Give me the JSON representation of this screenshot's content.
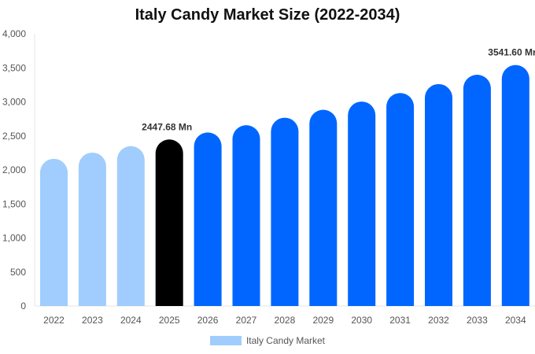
{
  "chart_data": {
    "type": "bar",
    "title": "Italy Candy Market Size (2022-2034)",
    "categories": [
      "2022",
      "2023",
      "2024",
      "2025",
      "2026",
      "2027",
      "2028",
      "2029",
      "2030",
      "2031",
      "2032",
      "2033",
      "2034"
    ],
    "series": [
      {
        "name": "Italy Candy Market",
        "values": [
          2164,
          2255,
          2349,
          2447.68,
          2550,
          2657,
          2768,
          2884,
          3005,
          3131,
          3262,
          3399,
          3541.6
        ]
      }
    ],
    "ylim": [
      0,
      4000
    ],
    "yticks": [
      0,
      500,
      1000,
      1500,
      2000,
      2500,
      3000,
      3500,
      4000
    ],
    "ytick_labels": [
      "0",
      "500",
      "1,000",
      "1,500",
      "2,000",
      "2,500",
      "3,000",
      "3,500",
      "4,000"
    ],
    "data_labels": [
      {
        "category": "2025",
        "text": "2447.68 Mn"
      },
      {
        "category": "2034",
        "text": "3541.60 Mn"
      }
    ],
    "colors": {
      "historical": "#a0cdfd",
      "current": "#000000",
      "forecast": "#0066ff"
    },
    "legend_position": "bottom",
    "grid": false
  }
}
